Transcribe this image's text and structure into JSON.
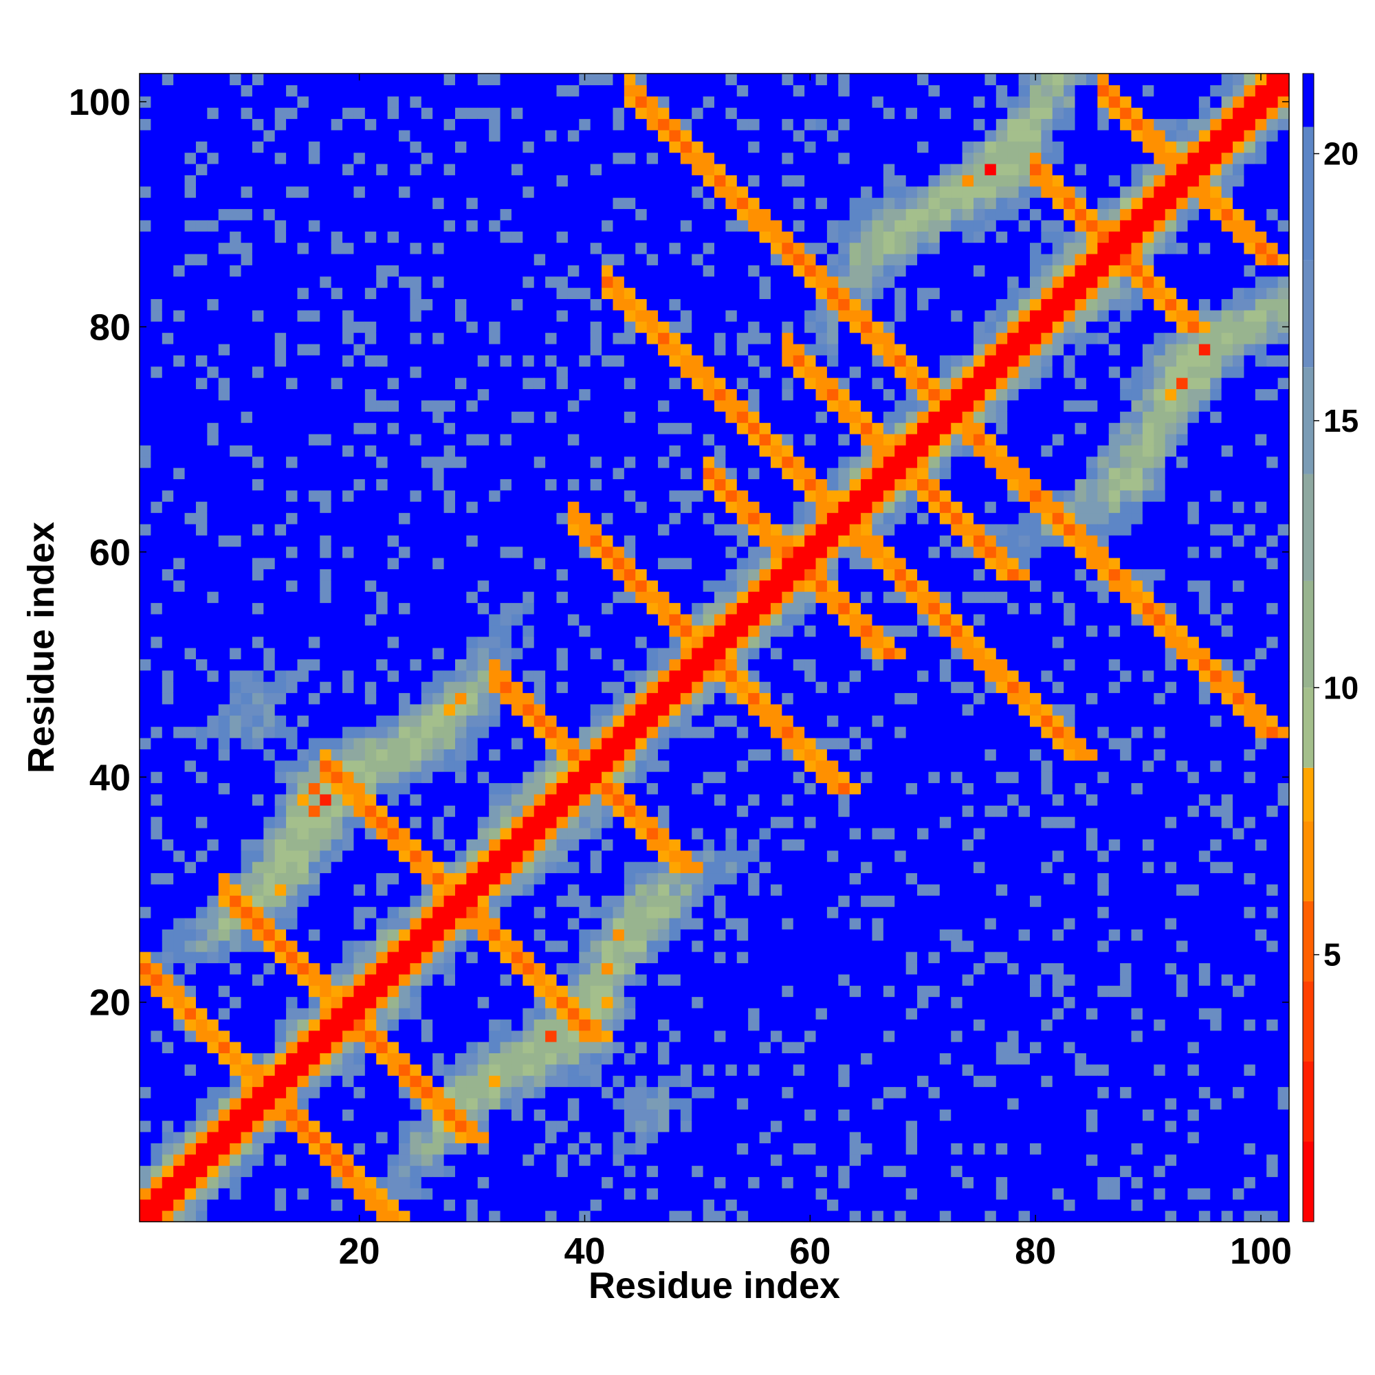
{
  "chart_data": {
    "type": "heatmap",
    "title": "",
    "xlabel": "Residue index",
    "ylabel": "Residue index",
    "n_residues": 102,
    "xlim": [
      0.5,
      102.5
    ],
    "ylim": [
      0.5,
      102.5
    ],
    "x_ticks": [
      20,
      40,
      60,
      80,
      100
    ],
    "y_ticks": [
      20,
      40,
      60,
      80,
      100
    ],
    "colorbar": {
      "range": [
        0,
        21.5
      ],
      "ticks": [
        5,
        10,
        15,
        20
      ],
      "colors": [
        {
          "max": 1.5,
          "color": "#ff0000"
        },
        {
          "max": 3.0,
          "color": "#ff2000"
        },
        {
          "max": 4.5,
          "color": "#ff4000"
        },
        {
          "max": 6.0,
          "color": "#ff6000"
        },
        {
          "max": 7.5,
          "color": "#ff9000"
        },
        {
          "max": 8.5,
          "color": "#ffa500"
        },
        {
          "max": 10.0,
          "color": "#a4bf8c"
        },
        {
          "max": 12.0,
          "color": "#98b48f"
        },
        {
          "max": 14.0,
          "color": "#8ea8a0"
        },
        {
          "max": 16.0,
          "color": "#7b9cb5"
        },
        {
          "max": 18.0,
          "color": "#6a8dc2"
        },
        {
          "max": 20.5,
          "color": "#5d86c6"
        },
        {
          "max": 99,
          "color": "#0000ff"
        }
      ]
    },
    "distance_model": "Contact distance map (Å) with helix diagonal and cross strands",
    "features": [
      {
        "type": "diagonal"
      },
      {
        "type": "antidiagonal_strand",
        "sum": 24,
        "range": [
          1,
          23
        ]
      },
      {
        "type": "antidiagonal_strand",
        "sum": 38,
        "range": [
          8,
          30
        ]
      },
      {
        "type": "antidiagonal_strand",
        "sum": 58,
        "range": [
          17,
          41
        ]
      },
      {
        "type": "antidiagonal_strand",
        "sum": 81,
        "range": [
          32,
          49
        ]
      },
      {
        "type": "antidiagonal_strand",
        "sum": 102,
        "range": [
          39,
          63
        ]
      },
      {
        "type": "antidiagonal_strand",
        "sum": 118,
        "range": [
          51,
          67
        ]
      },
      {
        "type": "antidiagonal_strand",
        "sum": 136,
        "range": [
          58,
          78
        ]
      },
      {
        "type": "antidiagonal_strand",
        "sum": 174,
        "range": [
          80,
          95
        ]
      },
      {
        "type": "antidiagonal_strand",
        "sum": 187,
        "range": [
          86,
          101
        ]
      },
      {
        "type": "antidiagonal_strand",
        "sum": 126,
        "range": [
          42,
          84
        ]
      },
      {
        "type": "antidiagonal_strand",
        "sum": 145,
        "range": [
          44,
          101
        ]
      }
    ]
  }
}
